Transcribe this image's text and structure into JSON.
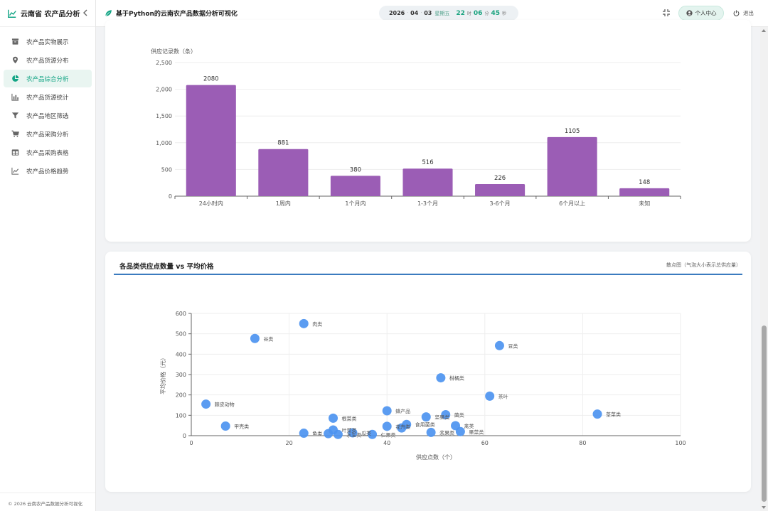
{
  "app": {
    "brand": "云南省 农产品分析",
    "title": "基于Python的云南农产品数据分析可视化"
  },
  "sidebar": {
    "items": [
      {
        "label": "农产品实物展示",
        "icon": "box-icon"
      },
      {
        "label": "农产品货源分布",
        "icon": "map-pin-icon"
      },
      {
        "label": "农产品综合分析",
        "icon": "pie-chart-icon",
        "active": true
      },
      {
        "label": "农产品货源统计",
        "icon": "bar-chart-icon"
      },
      {
        "label": "农产品地区筛选",
        "icon": "filter-icon"
      },
      {
        "label": "农产品采购分析",
        "icon": "cart-icon"
      },
      {
        "label": "农产品采购表格",
        "icon": "table-icon"
      },
      {
        "label": "农产品价格趋势",
        "icon": "line-chart-icon"
      }
    ],
    "footer": "© 2026 云南农产品数据分析可视化"
  },
  "header": {
    "date": {
      "year": "2026",
      "month": "04",
      "day": "03",
      "weekday": "星期五"
    },
    "time": {
      "hour": "22",
      "hour_unit": "时",
      "minute": "06",
      "minute_unit": "分",
      "second": "45",
      "second_unit": "秒"
    },
    "user_button": "个人中心",
    "logout": "退出"
  },
  "colors": {
    "accent": "#13a585",
    "bar": "#9b5db5",
    "bubble": "#4d94f0",
    "title_line": "#3b7bbf"
  },
  "chart_data": [
    {
      "type": "bar",
      "ylabel": "供应记录数（条）",
      "categories": [
        "24小时内",
        "1周内",
        "1个月内",
        "1-3个月",
        "3-6个月",
        "6个月以上",
        "未知"
      ],
      "values": [
        2080,
        881,
        380,
        516,
        226,
        1105,
        148
      ],
      "ylim": [
        0,
        2500
      ],
      "yticks": [
        0,
        500,
        1000,
        1500,
        2000,
        2500
      ],
      "ytick_labels": [
        "0",
        "500",
        "1,000",
        "1,500",
        "2,000",
        "2,500"
      ],
      "data_labels": true,
      "grid": true
    },
    {
      "type": "scatter",
      "title": "各品类供应点数量 vs 平均价格",
      "subtitle": "散点图（气泡大小表示总供应量）",
      "xlabel": "供应点数（个）",
      "ylabel": "平均价格（元）",
      "xlim": [
        0,
        100
      ],
      "ylim": [
        0,
        600
      ],
      "xticks": [
        0,
        20,
        40,
        60,
        80,
        100
      ],
      "yticks": [
        0,
        100,
        200,
        300,
        400,
        500,
        600
      ],
      "grid": true,
      "points": [
        {
          "name": "肉类",
          "x": 23,
          "y": 550
        },
        {
          "name": "谷类",
          "x": 13,
          "y": 477
        },
        {
          "name": "豆类",
          "x": 63,
          "y": 442
        },
        {
          "name": "柑橘类",
          "x": 51,
          "y": 284
        },
        {
          "name": "茶叶",
          "x": 61,
          "y": 194
        },
        {
          "name": "棘皮动物",
          "x": 3,
          "y": 155
        },
        {
          "name": "蜂产品",
          "x": 40,
          "y": 122
        },
        {
          "name": "茎菜类",
          "x": 83,
          "y": 106
        },
        {
          "name": "菌类",
          "x": 52,
          "y": 103
        },
        {
          "name": "坚果类",
          "x": 48,
          "y": 92
        },
        {
          "name": "根菜类",
          "x": 29,
          "y": 86
        },
        {
          "name": "甲壳类",
          "x": 7,
          "y": 47
        },
        {
          "name": "禽类",
          "x": 54,
          "y": 49
        },
        {
          "name": "食用菌类",
          "x": 44,
          "y": 55
        },
        {
          "name": "花卉类",
          "x": 40,
          "y": 46
        },
        {
          "name": "叶菜类",
          "x": 29,
          "y": 28
        },
        {
          "name": "果菜类",
          "x": 55,
          "y": 20
        },
        {
          "name": "浆果类",
          "x": 49,
          "y": 16
        },
        {
          "name": "鱼类",
          "x": 23,
          "y": 12
        },
        {
          "name": "瓜类",
          "x": 33,
          "y": 14
        },
        {
          "name": "水生类",
          "x": 30,
          "y": 6
        },
        {
          "name": "仁果类",
          "x": 37,
          "y": 6
        },
        {
          "name": "",
          "x": 28,
          "y": 10
        },
        {
          "name": "",
          "x": 43,
          "y": 38
        }
      ]
    }
  ]
}
